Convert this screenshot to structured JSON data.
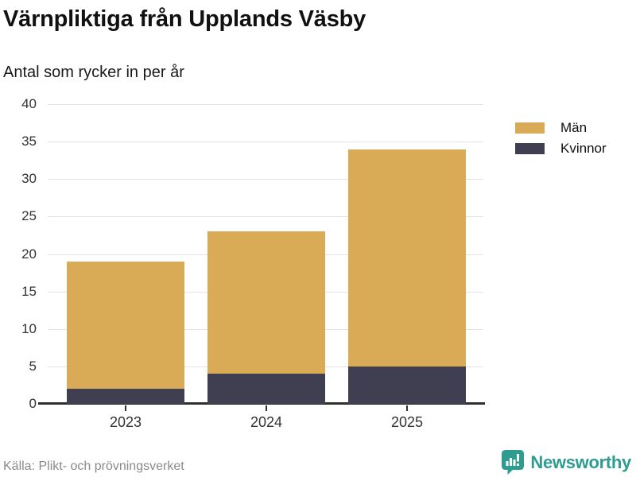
{
  "chart_data": {
    "type": "bar",
    "stacked": true,
    "title": "Värnpliktiga från Upplands Väsby",
    "subtitle": "Antal som rycker in per år",
    "categories": [
      "2023",
      "2024",
      "2025"
    ],
    "series": [
      {
        "name": "Män",
        "color": "#d9ab57",
        "values": [
          17,
          19,
          29
        ]
      },
      {
        "name": "Kvinnor",
        "color": "#3f3f51",
        "values": [
          2,
          4,
          5
        ]
      }
    ],
    "stack_bottom_to_top": [
      "Kvinnor",
      "Män"
    ],
    "totals": [
      19,
      23,
      34
    ],
    "xlabel": "",
    "ylabel": "",
    "ylim": [
      0,
      40
    ],
    "yticks": [
      0,
      5,
      10,
      15,
      20,
      25,
      30,
      35,
      40
    ],
    "grid": "horizontal",
    "legend_position": "right"
  },
  "footer": {
    "source": "Källa: Plikt- och prövningsverket",
    "brand_name": "Newsworthy",
    "brand_color": "#2e9c90"
  }
}
